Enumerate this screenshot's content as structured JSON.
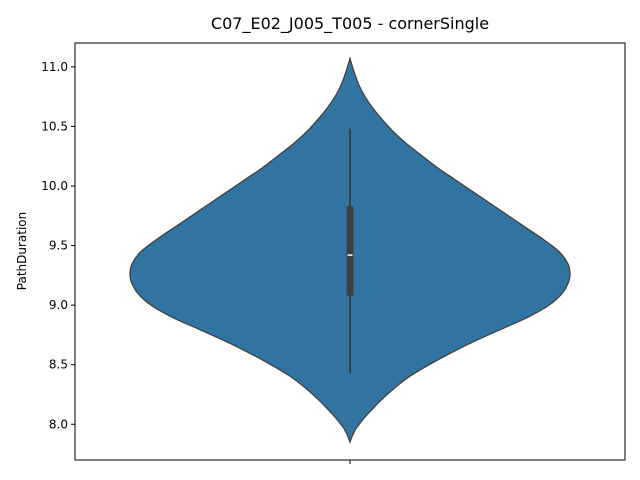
{
  "chart_data": {
    "type": "violin",
    "title": "C07_E02_J005_T005 - cornerSingle",
    "xlabel": "",
    "ylabel": "PathDuration",
    "ylim": [
      7.7,
      11.2
    ],
    "yticks": [
      8.0,
      8.5,
      9.0,
      9.5,
      10.0,
      10.5,
      11.0
    ],
    "ytick_labels": [
      "8.0",
      "8.5",
      "9.0",
      "9.5",
      "10.0",
      "10.5",
      "11.0"
    ],
    "fill_color": "#3274a1",
    "edge_color": "#3f3f3f",
    "grid": false,
    "violin": {
      "y_min": 7.85,
      "y_max": 11.07,
      "density": [
        [
          7.85,
          0.0
        ],
        [
          7.88,
          0.006
        ],
        [
          7.92,
          0.015
        ],
        [
          7.96,
          0.026
        ],
        [
          8.0,
          0.042
        ],
        [
          8.06,
          0.068
        ],
        [
          8.12,
          0.098
        ],
        [
          8.2,
          0.14
        ],
        [
          8.3,
          0.2
        ],
        [
          8.4,
          0.27
        ],
        [
          8.5,
          0.36
        ],
        [
          8.6,
          0.46
        ],
        [
          8.7,
          0.57
        ],
        [
          8.8,
          0.69
        ],
        [
          8.9,
          0.81
        ],
        [
          9.0,
          0.905
        ],
        [
          9.1,
          0.965
        ],
        [
          9.2,
          0.995
        ],
        [
          9.27,
          1.0
        ],
        [
          9.35,
          0.99
        ],
        [
          9.45,
          0.95
        ],
        [
          9.55,
          0.88
        ],
        [
          9.65,
          0.8
        ],
        [
          9.75,
          0.72
        ],
        [
          9.85,
          0.64
        ],
        [
          9.95,
          0.56
        ],
        [
          10.05,
          0.48
        ],
        [
          10.15,
          0.4
        ],
        [
          10.25,
          0.33
        ],
        [
          10.35,
          0.26
        ],
        [
          10.45,
          0.2
        ],
        [
          10.55,
          0.15
        ],
        [
          10.65,
          0.105
        ],
        [
          10.75,
          0.068
        ],
        [
          10.85,
          0.04
        ],
        [
          10.95,
          0.02
        ],
        [
          11.02,
          0.008
        ],
        [
          11.07,
          0.0
        ]
      ]
    },
    "box": {
      "whisker_low": 8.43,
      "q1": 9.08,
      "median": 9.42,
      "q3": 9.83,
      "whisker_high": 10.48
    }
  }
}
